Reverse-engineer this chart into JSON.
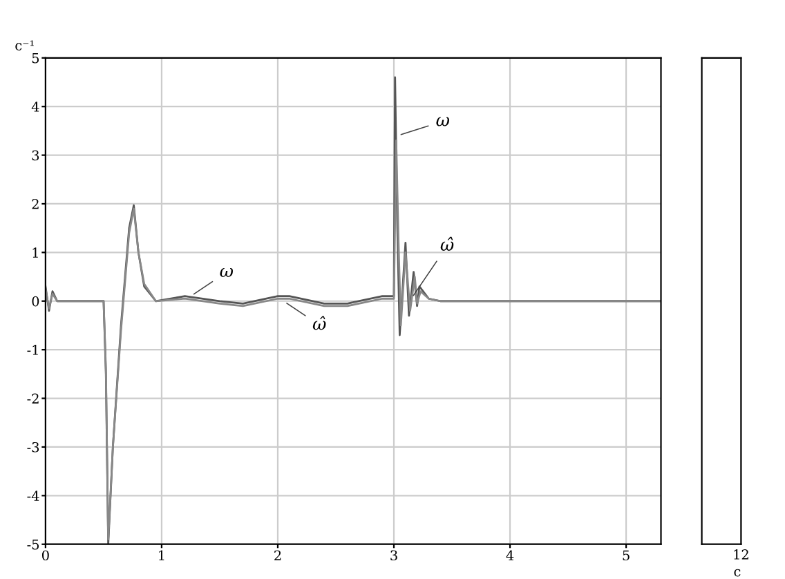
{
  "chart_data": [
    {
      "type": "line",
      "ylabel": "c⁻¹",
      "xlim": [
        0,
        5.3
      ],
      "ylim": [
        -5,
        5
      ],
      "xticks": [
        0,
        1,
        2,
        3,
        4,
        5
      ],
      "yticks": [
        -5,
        -4,
        -3,
        -2,
        -1,
        0,
        1,
        2,
        3,
        4,
        5
      ],
      "grid": true,
      "legend": false,
      "marker": "none",
      "line_style": "solid",
      "series": [
        {
          "color": "#555555",
          "x": [
            0,
            0.03,
            0.06,
            0.1,
            0.5,
            0.52,
            0.54,
            0.58,
            0.65,
            0.72,
            0.76,
            0.8,
            0.85,
            0.95,
            1.2,
            1.5,
            1.7,
            2.0,
            2.1,
            2.4,
            2.6,
            2.9,
            3.0,
            3.01,
            3.03,
            3.05,
            3.1,
            3.13,
            3.17,
            3.2,
            3.22,
            3.3,
            3.4,
            4.0,
            5.0,
            5.3
          ],
          "values": [
            0.3,
            -0.2,
            0.2,
            0,
            0,
            -1.5,
            -5.0,
            -3.0,
            -0.5,
            1.5,
            1.97,
            1.0,
            0.3,
            0,
            0.1,
            0,
            -0.05,
            0.1,
            0.1,
            -0.05,
            -0.05,
            0.1,
            0.1,
            4.6,
            1.5,
            -0.7,
            1.2,
            -0.3,
            0.6,
            -0.1,
            0.3,
            0.05,
            0,
            0,
            0,
            0
          ]
        },
        {
          "color": "#888888",
          "x": [
            0,
            0.03,
            0.06,
            0.1,
            0.5,
            0.52,
            0.54,
            0.58,
            0.65,
            0.72,
            0.76,
            0.8,
            0.85,
            0.95,
            1.2,
            1.5,
            1.7,
            2.0,
            2.1,
            2.4,
            2.6,
            2.9,
            3.0,
            3.02,
            3.04,
            3.06,
            3.1,
            3.14,
            3.18,
            3.2,
            3.23,
            3.3,
            3.4,
            4.0,
            5.0,
            5.3
          ],
          "values": [
            0.25,
            -0.15,
            0.15,
            0,
            0,
            -1.4,
            -4.9,
            -3.0,
            -0.6,
            1.4,
            1.9,
            1.0,
            0.35,
            0,
            0.05,
            -0.05,
            -0.1,
            0.05,
            0.05,
            -0.1,
            -0.1,
            0.05,
            0.05,
            3.3,
            1.2,
            -0.5,
            1.0,
            -0.2,
            0.5,
            -0.05,
            0.2,
            0.05,
            0,
            0,
            0,
            0
          ]
        }
      ],
      "annotations": [
        {
          "text": "ω",
          "x": 1.25,
          "y": 0.1
        },
        {
          "text": "ω̂",
          "x": 2.05,
          "y": 0.0
        },
        {
          "text": "ω",
          "x": 3.03,
          "y": 3.4
        },
        {
          "text": "ω̂",
          "x": 3.15,
          "y": 0.05
        }
      ]
    },
    {
      "type": "other",
      "xlabel": "c",
      "annotations": [
        "12"
      ]
    }
  ]
}
